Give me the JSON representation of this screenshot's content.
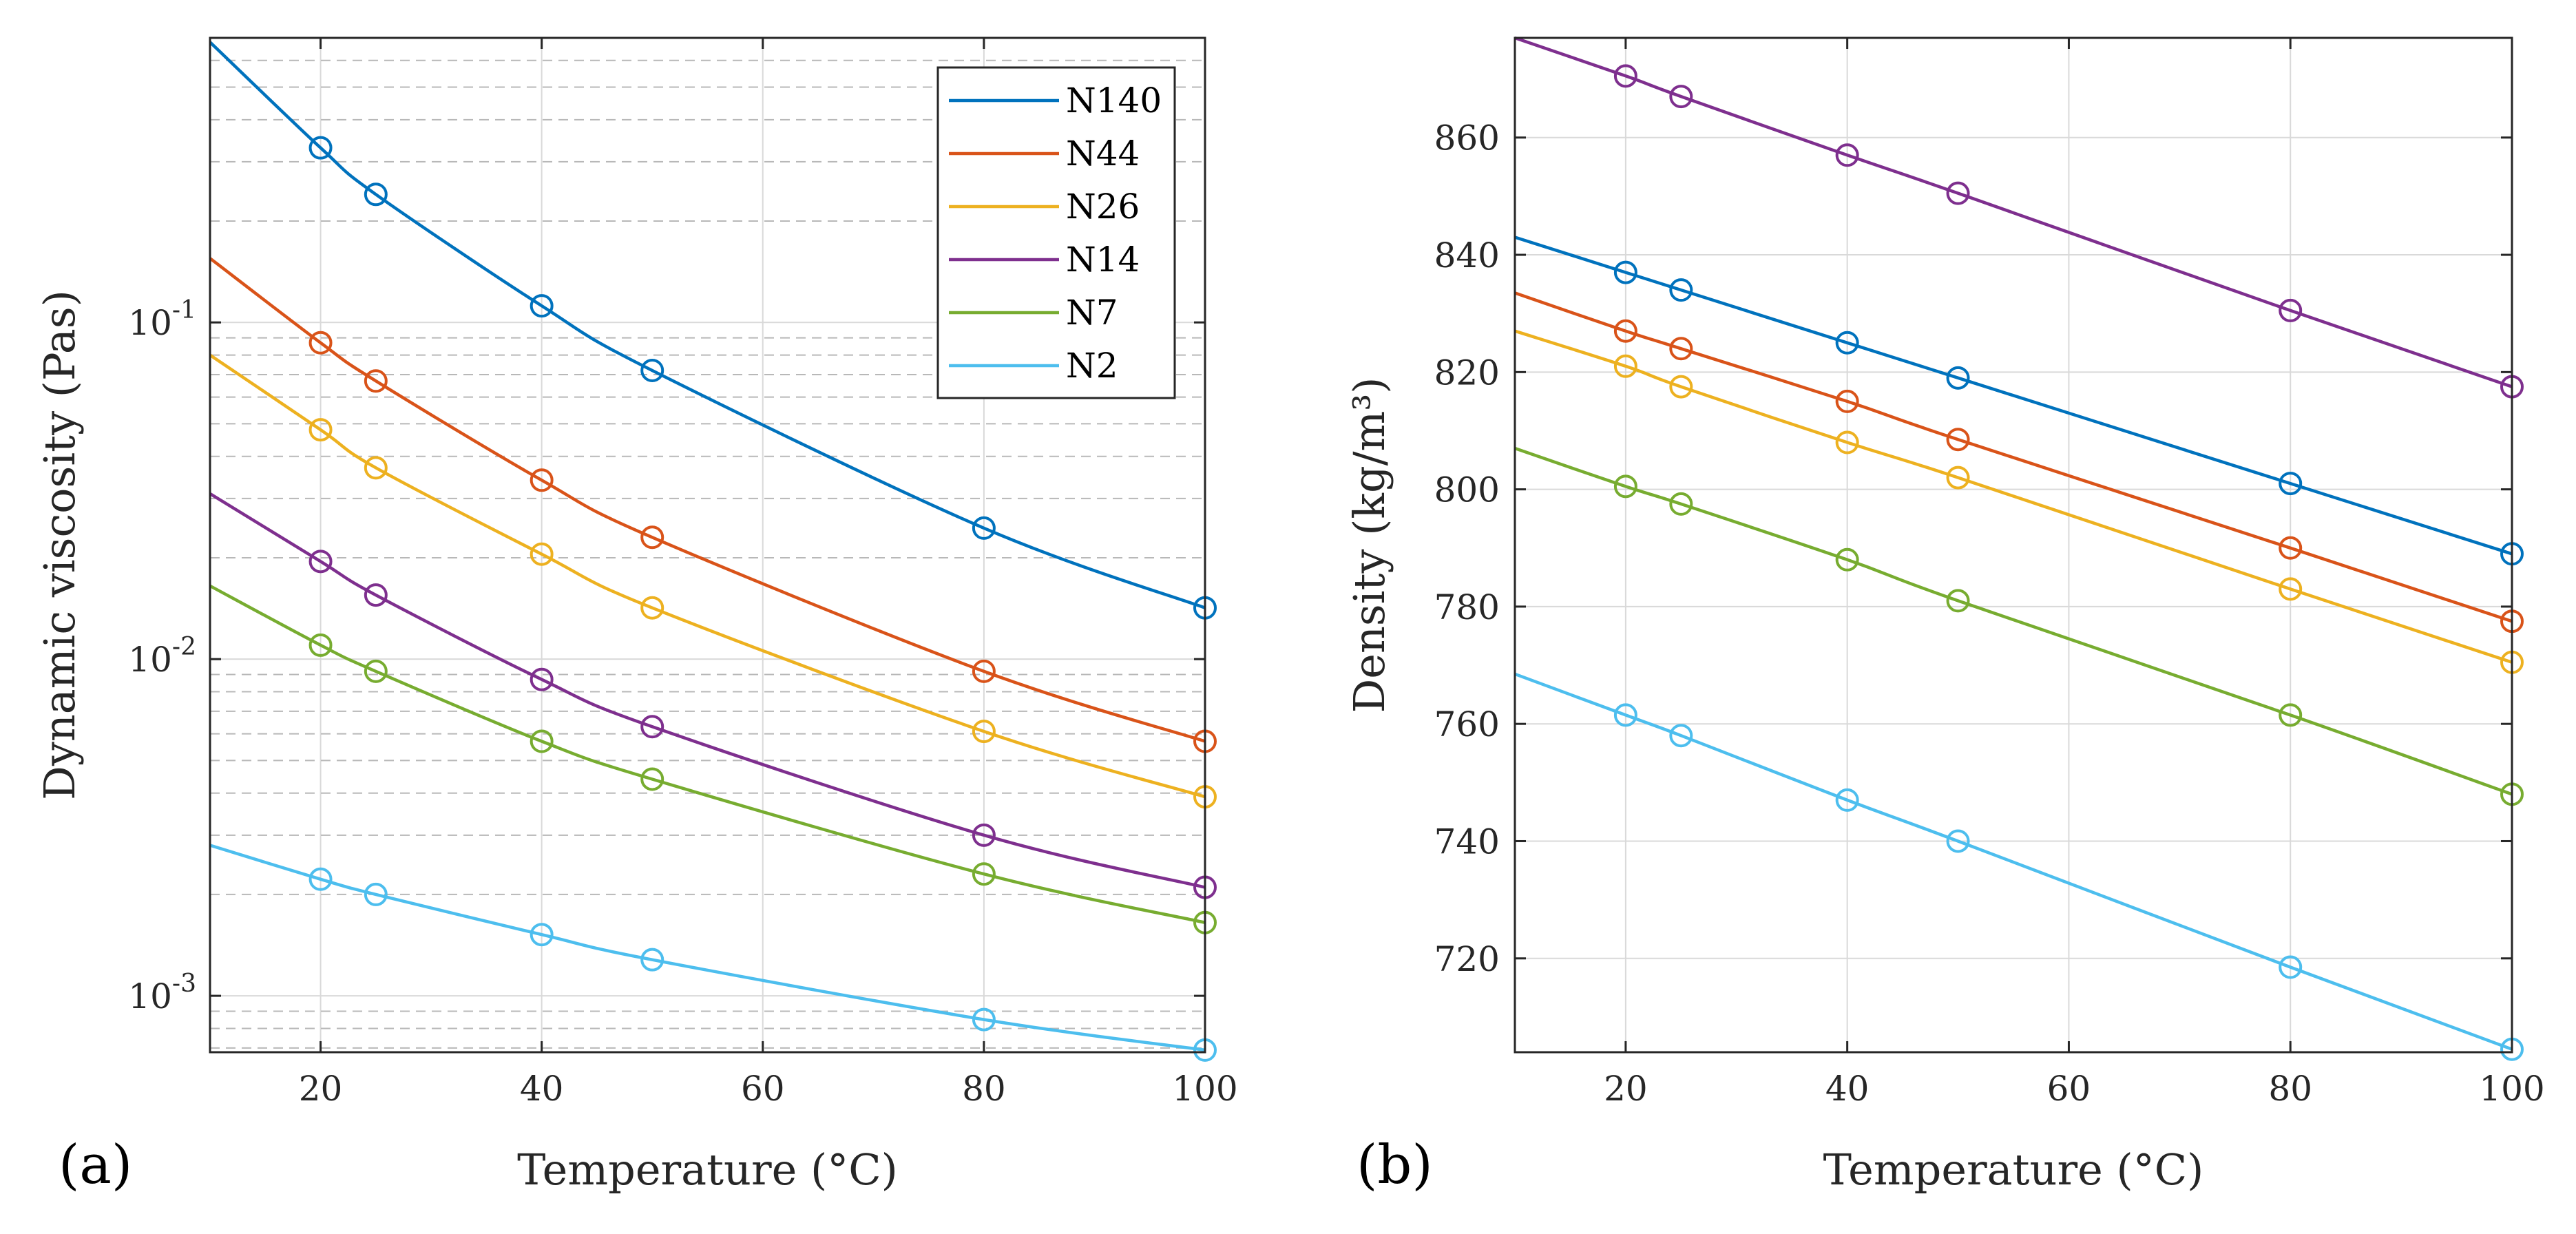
{
  "colors": {
    "N140": "#0072BD",
    "N44": "#D95319",
    "N26": "#EDB120",
    "N14": "#7E2F8E",
    "N7": "#77AC30",
    "N2": "#4DBEEE"
  },
  "chart_data": [
    {
      "type": "line",
      "panel_label": "(a)",
      "xlabel": "Temperature (°C)",
      "ylabel": "Dynamic viscosity (Pas)",
      "yscale": "log",
      "xlim": [
        10,
        100
      ],
      "ylim": [
        0.00068,
        0.7
      ],
      "x_ticks": [
        20,
        40,
        60,
        80,
        100
      ],
      "x_tick_labels": [
        "20",
        "40",
        "60",
        "80",
        "100"
      ],
      "y_ticks": [
        0.001,
        0.01,
        0.1
      ],
      "y_tick_labels": [
        {
          "base": "10",
          "exp": "-3"
        },
        {
          "base": "10",
          "exp": "-2"
        },
        {
          "base": "10",
          "exp": "-1"
        }
      ],
      "grid": true,
      "minor_grid": true,
      "legend_position": "top-right",
      "legend": [
        "N140",
        "N44",
        "N26",
        "N14",
        "N7",
        "N2"
      ],
      "series": [
        {
          "name": "N140",
          "x": [
            20,
            25,
            40,
            50,
            80,
            100
          ],
          "values": [
            0.33,
            0.24,
            0.112,
            0.072,
            0.0245,
            0.0142
          ],
          "line_start": 0.68
        },
        {
          "name": "N44",
          "x": [
            20,
            25,
            40,
            50,
            80,
            100
          ],
          "values": [
            0.087,
            0.067,
            0.034,
            0.023,
            0.0092,
            0.0057
          ],
          "line_start": 0.155
        },
        {
          "name": "N26",
          "x": [
            20,
            25,
            40,
            50,
            80,
            100
          ],
          "values": [
            0.048,
            0.037,
            0.0205,
            0.0142,
            0.0061,
            0.0039
          ],
          "line_start": 0.08
        },
        {
          "name": "N14",
          "x": [
            20,
            25,
            40,
            50,
            80,
            100
          ],
          "values": [
            0.0195,
            0.0155,
            0.0087,
            0.0063,
            0.003,
            0.0021
          ],
          "line_start": 0.031
        },
        {
          "name": "N7",
          "x": [
            20,
            25,
            40,
            50,
            80,
            100
          ],
          "values": [
            0.011,
            0.0092,
            0.0057,
            0.0044,
            0.0023,
            0.00165
          ],
          "line_start": 0.0165
        },
        {
          "name": "N2",
          "x": [
            20,
            25,
            40,
            50,
            80,
            100
          ],
          "values": [
            0.00222,
            0.002,
            0.00152,
            0.00128,
            0.00085,
            0.00069
          ],
          "line_start": 0.0028
        }
      ]
    },
    {
      "type": "line",
      "panel_label": "(b)",
      "xlabel": "Temperature (°C)",
      "ylabel": "Density (kg/m³)",
      "yscale": "linear",
      "xlim": [
        10,
        100
      ],
      "ylim": [
        704,
        877
      ],
      "x_ticks": [
        20,
        40,
        60,
        80,
        100
      ],
      "x_tick_labels": [
        "20",
        "40",
        "60",
        "80",
        "100"
      ],
      "y_ticks": [
        720,
        740,
        760,
        780,
        800,
        820,
        840,
        860
      ],
      "y_tick_labels": [
        "720",
        "740",
        "760",
        "780",
        "800",
        "820",
        "840",
        "860"
      ],
      "grid": true,
      "series": [
        {
          "name": "N14",
          "x": [
            20,
            25,
            40,
            50,
            80,
            100
          ],
          "values": [
            870.5,
            867,
            857,
            850.5,
            830.5,
            817.5
          ],
          "line_start": 877
        },
        {
          "name": "N140",
          "x": [
            20,
            25,
            40,
            50,
            80,
            100
          ],
          "values": [
            837,
            834,
            825,
            819,
            801,
            789
          ],
          "line_start": 843
        },
        {
          "name": "N44",
          "x": [
            20,
            25,
            40,
            50,
            80,
            100
          ],
          "values": [
            827,
            824,
            815,
            808.5,
            790,
            777.5
          ],
          "line_start": 833.5
        },
        {
          "name": "N26",
          "x": [
            20,
            25,
            40,
            50,
            80,
            100
          ],
          "values": [
            821,
            817.5,
            808,
            802,
            783,
            770.5
          ],
          "line_start": 827
        },
        {
          "name": "N7",
          "x": [
            20,
            25,
            40,
            50,
            80,
            100
          ],
          "values": [
            800.5,
            797.5,
            788,
            781,
            761.5,
            748
          ],
          "line_start": 807
        },
        {
          "name": "N2",
          "x": [
            20,
            25,
            40,
            50,
            80,
            100
          ],
          "values": [
            761.5,
            758,
            747,
            740,
            718.5,
            704.5
          ],
          "line_start": 768.5
        }
      ]
    }
  ]
}
